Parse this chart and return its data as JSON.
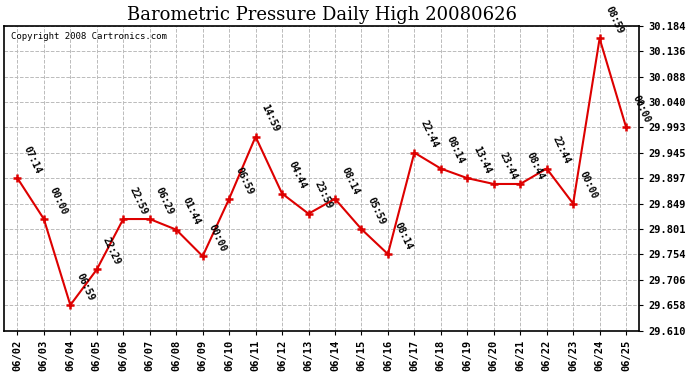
{
  "title": "Barometric Pressure Daily High 20080626",
  "copyright": "Copyright 2008 Cartronics.com",
  "x_labels": [
    "06/02",
    "06/03",
    "06/04",
    "06/05",
    "06/06",
    "06/07",
    "06/08",
    "06/09",
    "06/10",
    "06/11",
    "06/12",
    "06/13",
    "06/14",
    "06/15",
    "06/16",
    "06/17",
    "06/18",
    "06/19",
    "06/20",
    "06/21",
    "06/22",
    "06/23",
    "06/24",
    "06/25"
  ],
  "y_values": [
    29.897,
    29.82,
    29.658,
    29.725,
    29.82,
    29.82,
    29.8,
    29.75,
    29.858,
    29.975,
    29.868,
    29.83,
    29.858,
    29.801,
    29.754,
    29.945,
    29.915,
    29.897,
    29.886,
    29.886,
    29.915,
    29.849,
    30.16,
    29.993
  ],
  "time_labels": [
    "07:14",
    "00:00",
    "06:59",
    "22:29",
    "22:59",
    "06:29",
    "01:44",
    "00:00",
    "06:59",
    "14:59",
    "04:44",
    "23:59",
    "08:14",
    "05:59",
    "08:14",
    "22:44",
    "08:14",
    "13:44",
    "23:44",
    "08:44",
    "22:44",
    "00:00",
    "08:59",
    "00:00"
  ],
  "line_color": "#dd0000",
  "marker_color": "#dd0000",
  "bg_color": "#ffffff",
  "grid_color": "#bbbbbb",
  "ylim_min": 29.61,
  "ylim_max": 30.184,
  "ytick_values": [
    29.61,
    29.658,
    29.706,
    29.754,
    29.801,
    29.849,
    29.897,
    29.945,
    29.993,
    30.04,
    30.088,
    30.136,
    30.184
  ],
  "title_fontsize": 13,
  "tick_fontsize": 7.5,
  "annotation_fontsize": 7
}
